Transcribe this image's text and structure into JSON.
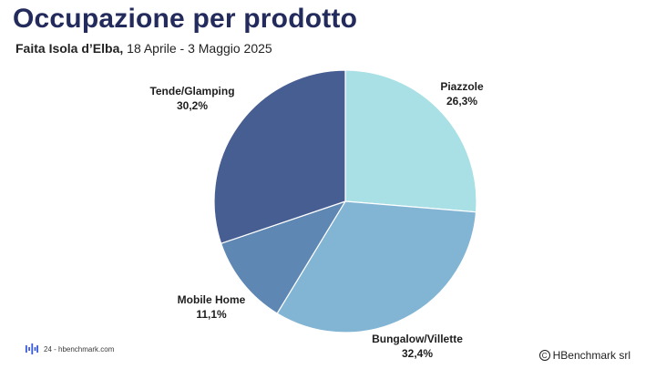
{
  "header": {
    "title": "Occupazione per prodotto",
    "subtitle_bold": "Faita Isola d’Elba,",
    "subtitle_rest": " 18 Aprile - 3 Maggio 2025"
  },
  "chart_data": {
    "type": "pie",
    "title": "",
    "slices": [
      {
        "label": "Piazzole",
        "value": 26.3,
        "display": "26,3%",
        "color": "#a8e0e6"
      },
      {
        "label": "Bungalow/Villette",
        "value": 32.4,
        "display": "32,4%",
        "color": "#82b4d4"
      },
      {
        "label": "Mobile Home",
        "value": 11.1,
        "display": "11,1%",
        "color": "#5f87b3"
      },
      {
        "label": "Tende/Glamping",
        "value": 30.2,
        "display": "30,2%",
        "color": "#475e92"
      }
    ],
    "start_angle_deg": 0,
    "direction": "clockwise",
    "legend": "none"
  },
  "footer": {
    "page_ref": "24 - hbenchmark.com",
    "copyright_icon": "copyright-icon",
    "copyright_text": "HBenchmark srl",
    "logo_icon": "hbenchmark-logo-icon",
    "logo_color": "#3b5bdb"
  }
}
